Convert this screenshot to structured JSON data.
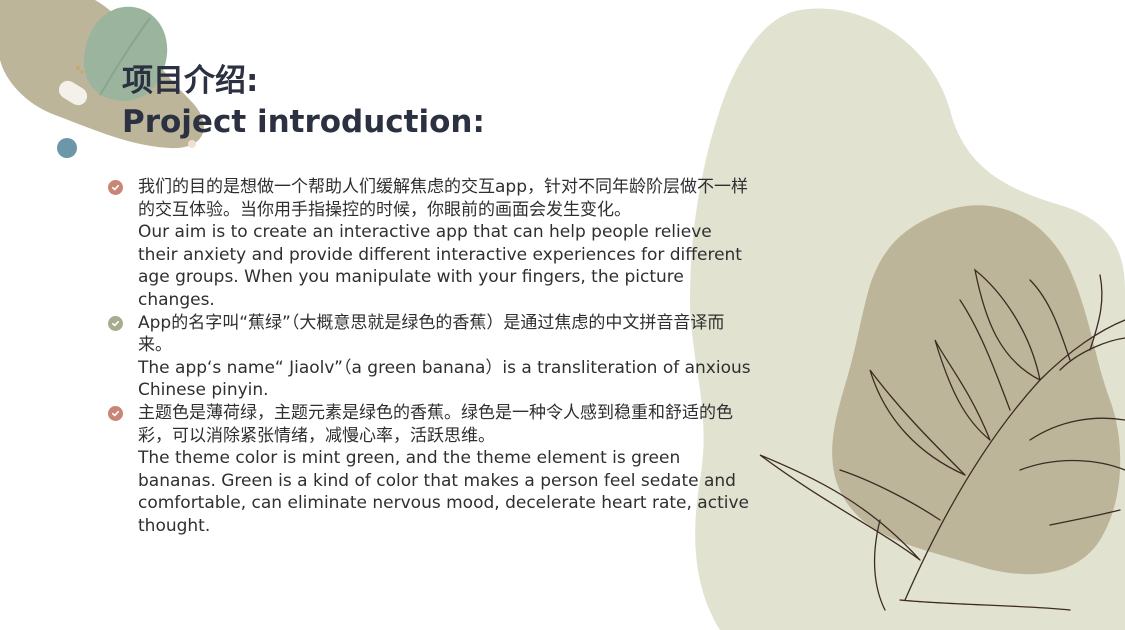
{
  "title": {
    "cn": "项目介绍:",
    "en": "Project introduction:"
  },
  "bullets": [
    {
      "icon": "check-circle-icon",
      "color": "#c98677",
      "cn": "我们的目的是想做一个帮助人们缓解焦虑的交互app，针对不同年龄阶层做不一样的交互体验。当你用手指操控的时候，你眼前的画面会发生变化。",
      "en": "Our aim is to create an interactive app that can help people relieve their anxiety and provide different interactive experiences for different age groups. When you manipulate with your fingers, the picture changes."
    },
    {
      "icon": "check-circle-icon",
      "color": "#a9ab8f",
      "cn": "App的名字叫“蕉绿”（大概意思就是绿色的香蕉）是通过焦虑的中文拼音音译而来。",
      "en": "The app‘s name“ Jiaolv”（a green banana）is a transliteration of anxious Chinese pinyin."
    },
    {
      "icon": "check-circle-icon",
      "color": "#c98677",
      "cn": "主题色是薄荷绿，主题元素是绿色的香蕉。绿色是一种令人感到稳重和舒适的色彩，可以消除紧张情绪，减慢心率，活跃思维。",
      "en": "The theme color is mint green, and the theme element is green bananas. Green is a kind of color that makes a person feel sedate and comfortable, can eliminate nervous mood, decelerate heart rate, active thought."
    }
  ],
  "palette": {
    "light_green_blob": "#e1e3d0",
    "khaki_blob": "#bdb59a",
    "sage_leaf": "#9bb49d",
    "teal_dot": "#6c97a8",
    "line_art": "#3d2b22"
  }
}
